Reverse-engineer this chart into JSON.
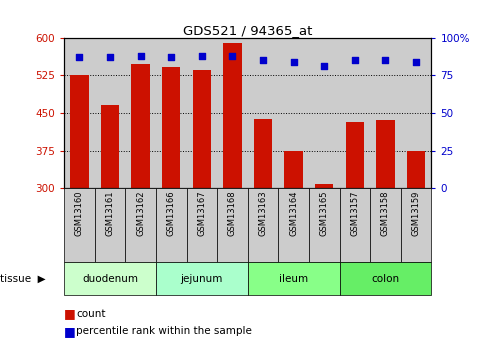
{
  "title": "GDS521 / 94365_at",
  "samples": [
    "GSM13160",
    "GSM13161",
    "GSM13162",
    "GSM13166",
    "GSM13167",
    "GSM13168",
    "GSM13163",
    "GSM13164",
    "GSM13165",
    "GSM13157",
    "GSM13158",
    "GSM13159"
  ],
  "counts": [
    525,
    465,
    548,
    542,
    535,
    590,
    438,
    375,
    308,
    432,
    435,
    375
  ],
  "percentiles": [
    87,
    87,
    88,
    87,
    88,
    88,
    85,
    84,
    81,
    85,
    85,
    84
  ],
  "tissues": [
    {
      "label": "duodenum",
      "start": 0,
      "end": 3
    },
    {
      "label": "jejunum",
      "start": 3,
      "end": 6
    },
    {
      "label": "ileum",
      "start": 6,
      "end": 9
    },
    {
      "label": "colon",
      "start": 9,
      "end": 12
    }
  ],
  "tissue_colors": [
    "#ccffcc",
    "#aaffcc",
    "#88ff88",
    "#66ee66"
  ],
  "ylim_left": [
    300,
    600
  ],
  "ylim_right": [
    0,
    100
  ],
  "yticks_left": [
    300,
    375,
    450,
    525,
    600
  ],
  "yticks_right": [
    0,
    25,
    50,
    75,
    100
  ],
  "bar_color": "#cc1100",
  "dot_color": "#0000cc",
  "background_color": "#ffffff",
  "bar_width": 0.6,
  "sample_bg_color": "#cccccc",
  "grid_color": "#000000"
}
